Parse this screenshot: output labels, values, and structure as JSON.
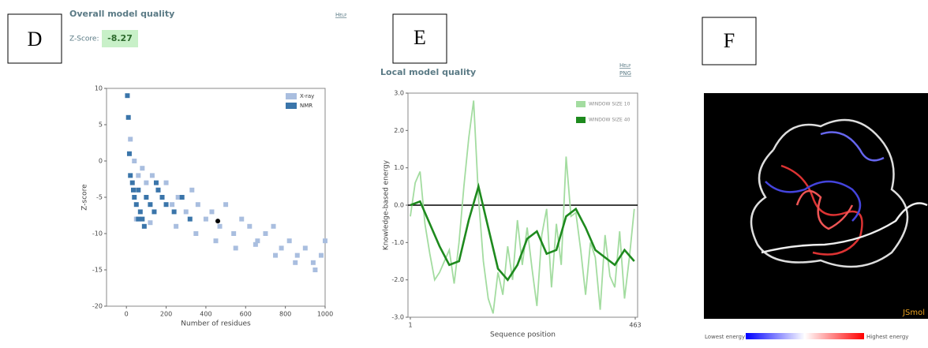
{
  "labels": [
    "D",
    "E",
    "F"
  ],
  "overall": {
    "title": "Overall model quality",
    "help": "Help",
    "zscore_label": "Z-Score:",
    "zscore": -8.27
  },
  "local": {
    "links": [
      "Help",
      "PNG"
    ]
  },
  "chart_data": [
    {
      "type": "scatter",
      "xlabel": "Number of residues",
      "ylabel": "Z-score",
      "xlim": [
        -100,
        1000
      ],
      "ylim": [
        -20,
        10
      ],
      "xticks": [
        0,
        200,
        400,
        600,
        800,
        1000
      ],
      "yticks": [
        10,
        5,
        0,
        -5,
        -10,
        -15,
        -20
      ],
      "legend": "upper right",
      "series": [
        {
          "name": "X-ray",
          "color": "#a9bedf",
          "x": [
            20,
            40,
            60,
            80,
            100,
            130,
            160,
            200,
            230,
            260,
            300,
            330,
            360,
            400,
            430,
            470,
            500,
            540,
            580,
            620,
            660,
            700,
            740,
            780,
            820,
            860,
            900,
            940,
            980,
            1000,
            50,
            120,
            250,
            350,
            450,
            550,
            650,
            750,
            850,
            950
          ],
          "values": [
            3,
            0,
            -2,
            -1,
            -3,
            -2,
            -4,
            -3,
            -6,
            -5,
            -7,
            -4,
            -6,
            -8,
            -7,
            -9,
            -6,
            -10,
            -8,
            -9,
            -11,
            -10,
            -9,
            -12,
            -11,
            -13,
            -12,
            -14,
            -13,
            -11,
            -8,
            -8.5,
            -9,
            -10,
            -11,
            -12,
            -11.5,
            -13,
            -14,
            -15
          ]
        },
        {
          "name": "NMR",
          "color": "#3a75aa",
          "x": [
            5,
            10,
            15,
            20,
            30,
            40,
            50,
            60,
            70,
            80,
            100,
            120,
            140,
            160,
            180,
            200,
            240,
            280,
            320,
            150,
            90,
            60,
            35
          ],
          "values": [
            9,
            6,
            1,
            -2,
            -3,
            -5,
            -6,
            -4,
            -7,
            -8,
            -5,
            -6,
            -7,
            -4,
            -5,
            -6,
            -7,
            -5,
            -8,
            -3,
            -9,
            -8,
            -4
          ]
        }
      ],
      "highlight": {
        "x": 460,
        "y": -8.27,
        "color": "#000000"
      }
    },
    {
      "type": "line",
      "title": "Local model quality",
      "xlabel": "Sequence position",
      "ylabel": "Knowledge-based energy",
      "xlim": [
        1,
        463
      ],
      "ylim": [
        -3,
        3
      ],
      "xticks": [
        1,
        463
      ],
      "yticks": [
        {
          "value": 3,
          "label": "3.0"
        },
        {
          "value": 2,
          "label": "2.0"
        },
        {
          "value": 1,
          "label": "1.0"
        },
        {
          "value": 0,
          "label": "0.0"
        },
        {
          "value": -1,
          "label": "-1.0"
        },
        {
          "value": -2,
          "label": "-2.0"
        },
        {
          "value": -3,
          "label": "-3.0"
        }
      ],
      "legend": "upper right",
      "series": [
        {
          "name": "WINDOW SIZE 10",
          "color": "#a3dca0",
          "x": [
            1,
            11,
            21,
            31,
            41,
            51,
            61,
            71,
            81,
            91,
            101,
            111,
            121,
            131,
            141,
            151,
            161,
            171,
            181,
            191,
            201,
            211,
            221,
            231,
            241,
            251,
            261,
            271,
            281,
            291,
            301,
            311,
            321,
            331,
            341,
            351,
            361,
            371,
            381,
            391,
            401,
            411,
            421,
            431,
            441,
            451,
            461
          ],
          "values": [
            -0.3,
            0.6,
            0.9,
            -0.5,
            -1.3,
            -2.0,
            -1.8,
            -1.5,
            -1.2,
            -2.1,
            -1.0,
            0.5,
            1.8,
            2.8,
            0.2,
            -1.5,
            -2.5,
            -2.9,
            -1.8,
            -2.4,
            -1.1,
            -2.0,
            -0.4,
            -1.6,
            -0.6,
            -1.7,
            -2.7,
            -0.8,
            -0.1,
            -2.2,
            -0.5,
            -1.6,
            1.3,
            -0.3,
            -0.2,
            -1.2,
            -2.4,
            -1.0,
            -1.4,
            -2.8,
            -0.8,
            -1.9,
            -2.2,
            -0.7,
            -2.5,
            -1.4,
            -0.1
          ]
        },
        {
          "name": "WINDOW SIZE 40",
          "color": "#1e8a1e",
          "x": [
            1,
            21,
            41,
            61,
            81,
            101,
            121,
            141,
            161,
            181,
            201,
            221,
            241,
            261,
            281,
            301,
            321,
            341,
            361,
            381,
            401,
            421,
            441,
            461
          ],
          "values": [
            0.0,
            0.1,
            -0.5,
            -1.1,
            -1.6,
            -1.5,
            -0.4,
            0.5,
            -0.6,
            -1.7,
            -2.0,
            -1.6,
            -0.9,
            -0.7,
            -1.3,
            -1.2,
            -0.3,
            -0.1,
            -0.6,
            -1.2,
            -1.4,
            -1.6,
            -1.2,
            -1.5
          ]
        }
      ]
    }
  ],
  "viewer": {
    "watermark": "JSmol",
    "low": "Lowest energy",
    "high": "Highest energy"
  }
}
